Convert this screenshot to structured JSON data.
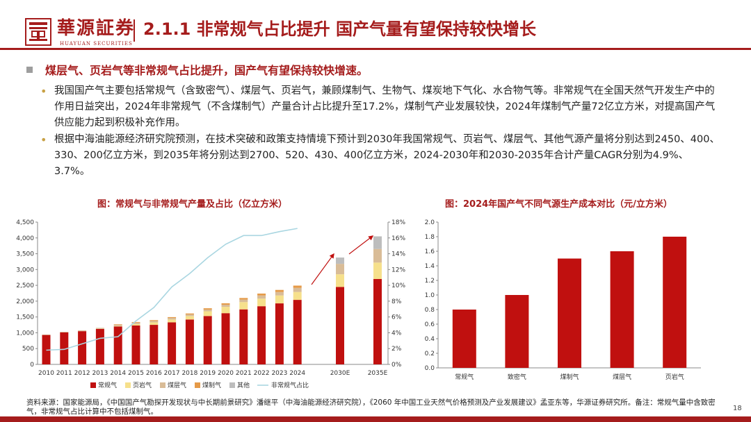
{
  "header": {
    "logo_text": "華源証券",
    "logo_sub": "HUAYUAN SECURITIES",
    "title": "2.1.1 非常规气占比提升 国产气量有望保持较快增长"
  },
  "main_bullet": "煤层气、页岩气等非常规气占比提升，国产气有望保持较快增速。",
  "sub_bullets": [
    "我国国产气主要包括常规气（含致密气）、煤层气、页岩气，兼顾煤制气、生物气、煤炭地下气化、水合物气等。非常规气在全国天然气开发生产中的作用日益突出，2024年非常规气（不含煤制气）产量合计占比提升至17.2%，煤制气产业发展较快，2024年煤制气产量72亿立方米，对提高国产气供应能力起到积极补充作用。",
    "根据中海油能源经济研究院预测，在技术突破和政策支持情境下预计到2030年我国常规气、页岩气、煤层气、其他气源产量将分别达到2450、400、330、200亿立方米，到2035年将分别达到2700、520、430、400亿立方米，2024-2030年和2030-2035年合计产量CAGR分别为4.9%、3.7%。"
  ],
  "chart_titles": [
    "图：常规气与非常规气产量及占比（亿立方米）",
    "图：2024年国产气不同气源生产成本对比（元/立方米）"
  ],
  "chart_data": [
    {
      "type": "bar",
      "stacked": true,
      "categories": [
        "2010",
        "2011",
        "2012",
        "2013",
        "2014",
        "2015",
        "2016",
        "2017",
        "2018",
        "2019",
        "2020",
        "2021",
        "2022",
        "2023",
        "2024",
        "2030E",
        "2035E"
      ],
      "series": [
        {
          "name": "常规气",
          "color": "#c0100f",
          "values": [
            930,
            1010,
            1050,
            1120,
            1200,
            1230,
            1250,
            1330,
            1420,
            1530,
            1620,
            1740,
            1840,
            1930,
            2040,
            2450,
            2700
          ]
        },
        {
          "name": "页岩气",
          "color": "#f6e08c",
          "values": [
            0,
            0,
            0,
            5,
            15,
            45,
            80,
            90,
            110,
            150,
            200,
            230,
            240,
            250,
            250,
            400,
            520
          ]
        },
        {
          "name": "煤层气",
          "color": "#d9bc97",
          "values": [
            15,
            20,
            25,
            30,
            40,
            45,
            45,
            50,
            50,
            55,
            67,
            80,
            100,
            110,
            130,
            330,
            430
          ]
        },
        {
          "name": "煤制气",
          "color": "#e59a48",
          "values": [
            0,
            0,
            0,
            0,
            15,
            20,
            25,
            25,
            30,
            40,
            45,
            50,
            60,
            65,
            72,
            0,
            0
          ]
        },
        {
          "name": "其他",
          "color": "#bdbdbd",
          "values": [
            0,
            0,
            0,
            0,
            0,
            0,
            0,
            0,
            0,
            0,
            0,
            0,
            0,
            0,
            0,
            200,
            400
          ]
        }
      ],
      "line_series": {
        "name": "非常规气占比",
        "color": "#a9d6e1",
        "axis": "right",
        "values": [
          1.8,
          1.9,
          2.6,
          3.3,
          3.5,
          5.5,
          7.2,
          9.8,
          11.5,
          13.5,
          15.2,
          16.3,
          16.3,
          16.8,
          17.2
        ]
      },
      "y_left": {
        "min": 0,
        "max": 4500,
        "ticks": [
          "0",
          "500",
          "1,000",
          "1,500",
          "2,000",
          "2,500",
          "3,000",
          "3,500",
          "4,000",
          "4,500"
        ]
      },
      "y_right": {
        "min": 0,
        "max": 18,
        "ticks": [
          "0%",
          "2%",
          "4%",
          "6%",
          "8%",
          "10%",
          "12%",
          "14%",
          "16%",
          "18%"
        ]
      },
      "legend_position": "bottom"
    },
    {
      "type": "bar",
      "categories": [
        "常规气",
        "致密气",
        "煤制气",
        "煤层气",
        "页岩气"
      ],
      "values": [
        0.8,
        1.0,
        1.5,
        1.6,
        1.8
      ],
      "color": "#c0100f",
      "y": {
        "min": 0,
        "max": 2.0,
        "ticks": [
          "0.0",
          "0.2",
          "0.4",
          "0.6",
          "0.8",
          "1.0",
          "1.2",
          "1.4",
          "1.6",
          "1.8",
          "2.0"
        ]
      }
    }
  ],
  "footer_note": "资料来源：国家能源局，《中国国产气勘探开发现状与中长期前景研究》潘继平（中海油能源经济研究院），《2060 年中国工业天然气价格预测及产业发展建议》孟亚东等，华源证券研究所。备注：常规气量中含致密气，非常规气占比计算中不包括煤制气。",
  "page_number": "18"
}
